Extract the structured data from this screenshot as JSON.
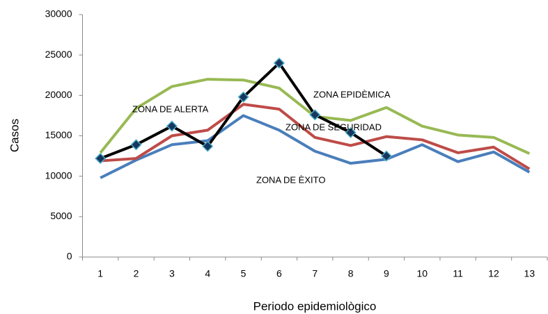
{
  "chart_data": {
    "type": "line",
    "categories": [
      "1",
      "2",
      "3",
      "4",
      "5",
      "6",
      "7",
      "8",
      "9",
      "10",
      "11",
      "12",
      "13"
    ],
    "series": [
      {
        "color": "#4a7ebb",
        "values": [
          9800,
          12000,
          13900,
          14400,
          17500,
          15700,
          13100,
          11600,
          12100,
          13900,
          11800,
          13000,
          10500
        ]
      },
      {
        "color": "#be4b48",
        "values": [
          11900,
          12200,
          15000,
          15700,
          18900,
          18300,
          14800,
          13800,
          14900,
          14500,
          12900,
          13600,
          10900
        ]
      },
      {
        "color": "#98b954",
        "values": [
          12900,
          18400,
          21100,
          22000,
          21900,
          20900,
          17400,
          16900,
          18500,
          16200,
          15100,
          14800,
          12800
        ]
      },
      {
        "color": "#000000",
        "marker": "diamond",
        "values": [
          12200,
          13900,
          16200,
          13700,
          19800,
          24000,
          17600,
          15400,
          12500,
          null,
          null,
          null,
          null
        ]
      }
    ],
    "ylim": [
      0,
      30000
    ],
    "yticks": [
      0,
      5000,
      10000,
      15000,
      20000,
      25000,
      30000
    ],
    "ylabel": "Casos",
    "xlabel": "Periodo epidemiològico",
    "grid": false,
    "annotations": [
      "ZONA EPIDÈMICA",
      "ZONA DE ALERTA",
      "ZONA DE SEGURIDAD",
      "ZONA DE ÈXITO"
    ]
  }
}
